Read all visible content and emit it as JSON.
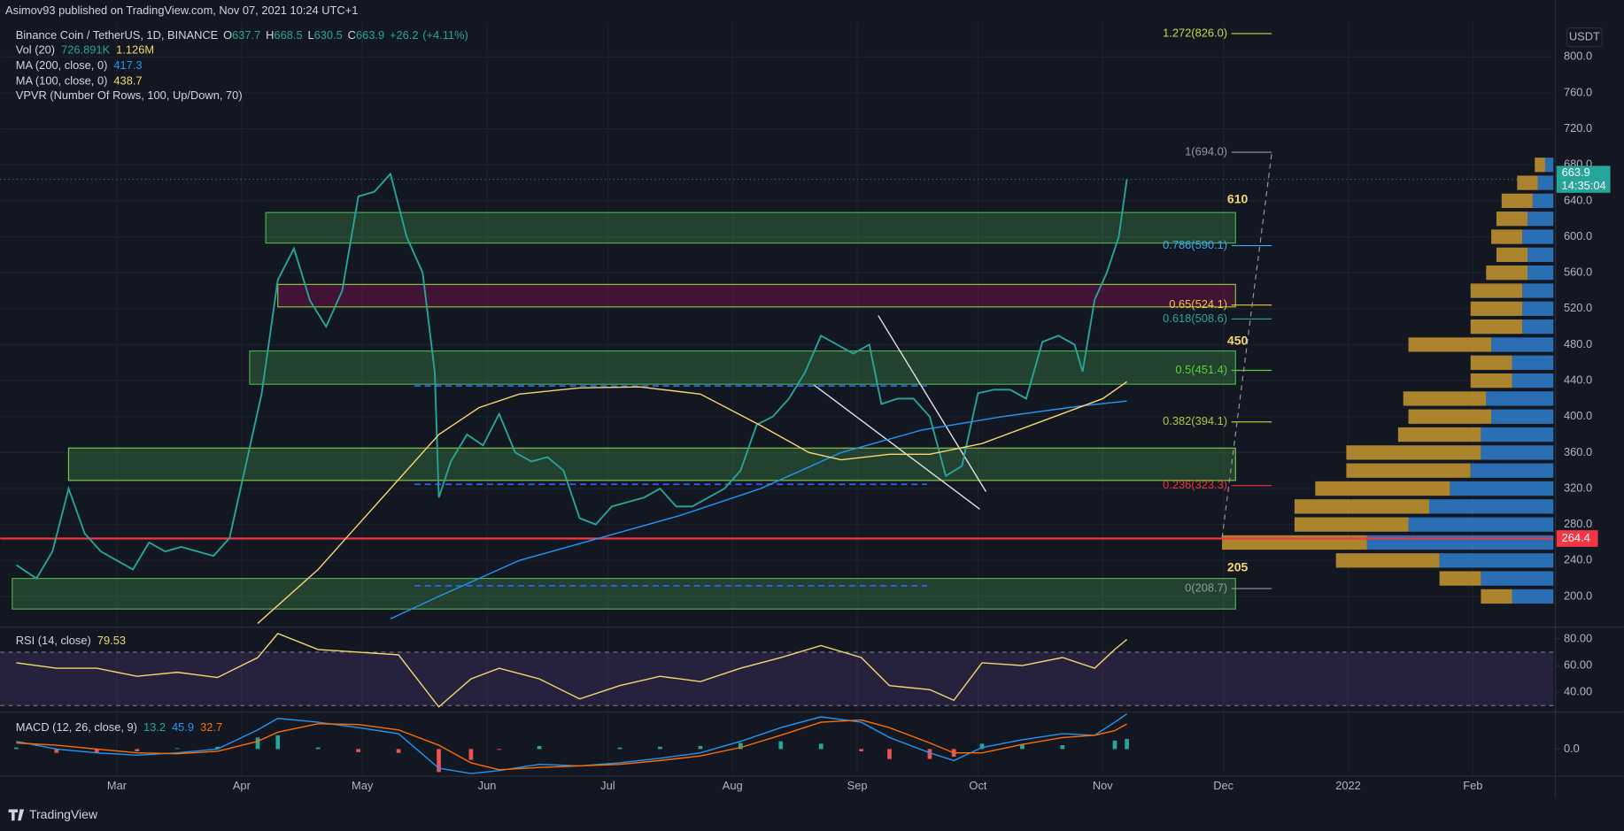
{
  "header": {
    "published": "Asimov93 published on TradingView.com, Nov 07, 2021 10:24 UTC+1"
  },
  "footer": {
    "brand": "TradingView"
  },
  "annotations": [
    "610",
    "450",
    "205"
  ],
  "chart_data": [
    {
      "type": "line",
      "title": "Binance Coin / TetherUS, 1D, BINANCE",
      "ohlc": [
        {
          "label": "O",
          "value": 637.7
        },
        {
          "label": "H",
          "value": 668.5
        },
        {
          "label": "L",
          "value": 630.5
        },
        {
          "label": "C",
          "value": 663.9
        }
      ],
      "change": "+26.2",
      "change_pct": "(+4.11%)",
      "volume": {
        "name": "Vol (20)",
        "values": [
          "726.891K",
          "1.126M"
        ]
      },
      "currency": "USDT",
      "countdown": "14:35:04",
      "xlim": [
        31,
        417
      ],
      "ylim": [
        167,
        838
      ],
      "xticks": [
        {
          "value": 60,
          "label": "Mar"
        },
        {
          "value": 91,
          "label": "Apr"
        },
        {
          "value": 121,
          "label": "May"
        },
        {
          "value": 152,
          "label": "Jun"
        },
        {
          "value": 182,
          "label": "Jul"
        },
        {
          "value": 213,
          "label": "Aug"
        },
        {
          "value": 244,
          "label": "Sep"
        },
        {
          "value": 274,
          "label": "Oct"
        },
        {
          "value": 305,
          "label": "Nov"
        },
        {
          "value": 335,
          "label": "Dec"
        },
        {
          "value": 366,
          "label": "2022"
        },
        {
          "value": 397,
          "label": "Feb"
        }
      ],
      "yticks": [
        {
          "value": 200,
          "label": "200.0"
        },
        {
          "value": 240,
          "label": "240.0"
        },
        {
          "value": 280,
          "label": "280.0"
        },
        {
          "value": 320,
          "label": "320.0"
        },
        {
          "value": 360,
          "label": "360.0"
        },
        {
          "value": 400,
          "label": "400.0"
        },
        {
          "value": 440,
          "label": "440.0"
        },
        {
          "value": 480,
          "label": "480.0"
        },
        {
          "value": 520,
          "label": "520.0"
        },
        {
          "value": 560,
          "label": "560.0"
        },
        {
          "value": 600,
          "label": "600.0"
        },
        {
          "value": 640,
          "label": "640.0"
        },
        {
          "value": 680,
          "label": "680.0"
        },
        {
          "value": 720,
          "label": "720.0"
        },
        {
          "value": 760,
          "label": "760.0"
        },
        {
          "value": 800,
          "label": "800.0"
        }
      ],
      "grid": true,
      "series": [
        {
          "color": "#26a69a",
          "x": [
            35,
            40,
            44,
            48,
            52,
            56,
            60,
            64,
            68,
            72,
            76,
            80,
            84,
            88,
            92,
            96,
            100,
            104,
            108,
            112,
            116,
            120,
            124,
            128,
            132,
            136,
            139,
            140,
            143,
            147,
            151,
            155,
            159,
            163,
            167,
            171,
            175,
            179,
            183,
            187,
            191,
            195,
            199,
            203,
            207,
            211,
            215,
            219,
            223,
            227,
            231,
            235,
            239,
            243,
            247,
            250,
            254,
            258,
            262,
            266,
            270,
            274,
            278,
            282,
            286,
            290,
            294,
            298,
            300,
            303,
            306,
            309,
            311
          ],
          "values": [
            235,
            220,
            250,
            320,
            270,
            250,
            240,
            230,
            260,
            250,
            255,
            250,
            245,
            265,
            345,
            426,
            552,
            587,
            529,
            500,
            540,
            645,
            650,
            670,
            600,
            560,
            449,
            310,
            350,
            380,
            368,
            403,
            360,
            350,
            355,
            340,
            287,
            280,
            300,
            305,
            310,
            320,
            300,
            300,
            310,
            320,
            340,
            391,
            400,
            420,
            449,
            490,
            480,
            470,
            480,
            414,
            420,
            420,
            400,
            334,
            345,
            426,
            430,
            430,
            420,
            483,
            490,
            480,
            450,
            530,
            560,
            600,
            663.9
          ]
        },
        {
          "name": "MA (200, close, 0)",
          "color": "#2196f3",
          "x": [
            128,
            140,
            160,
            180,
            200,
            220,
            240,
            260,
            280,
            300,
            311
          ],
          "values": [
            175,
            200,
            240,
            265,
            290,
            320,
            360,
            385,
            400,
            412,
            417.3
          ]
        },
        {
          "name": "MA (100, close, 0)",
          "color": "#f5d76e",
          "x": [
            95,
            110,
            130,
            140,
            150,
            160,
            175,
            190,
            205,
            220,
            232,
            240,
            252,
            262,
            275,
            290,
            305,
            311
          ],
          "values": [
            170,
            230,
            330,
            380,
            410,
            425,
            432,
            433,
            425,
            390,
            360,
            352,
            358,
            358,
            370,
            395,
            420,
            438.7
          ]
        }
      ],
      "zones": [
        {
          "range": [
            593,
            627
          ],
          "x": [
            97,
            338
          ],
          "fill": "rgba(76,175,80,0.28)",
          "stroke": "#4caf50"
        },
        {
          "range": [
            522,
            547
          ],
          "x": [
            100,
            338
          ],
          "fill": "rgba(136,14,79,0.4)",
          "stroke": "#8bc34a"
        },
        {
          "range": [
            436,
            473
          ],
          "x": [
            93,
            338
          ],
          "fill": "rgba(76,175,80,0.28)",
          "stroke": "#4caf50"
        },
        {
          "range": [
            329,
            365
          ],
          "x": [
            48,
            338
          ],
          "fill": "rgba(76,175,80,0.28)",
          "stroke": "#8bc34a"
        },
        {
          "range": [
            186,
            220
          ],
          "x": [
            34,
            338
          ],
          "fill": "rgba(76,175,80,0.28)",
          "stroke": "#4caf50"
        }
      ],
      "fib": {
        "x": [
          337,
          347
        ],
        "levels": [
          {
            "value": 826.0,
            "label": "1.272(826.0)",
            "color": "#c6d84b"
          },
          {
            "value": 694.0,
            "label": "1(694.0)",
            "color": "#9598a1"
          },
          {
            "value": 590.1,
            "label": "0.786(590.1)",
            "color": "#3fa9f5"
          },
          {
            "value": 524.1,
            "label": "0.65(524.1)",
            "color": "#f5c542"
          },
          {
            "value": 508.6,
            "label": "0.618(508.6)",
            "color": "#26a69a"
          },
          {
            "value": 451.4,
            "label": "0.5(451.4)",
            "color": "#5bcf3a"
          },
          {
            "value": 394.1,
            "label": "0.382(394.1)",
            "color": "#b4c43c"
          },
          {
            "value": 323.3,
            "label": "0.236(323.3)",
            "color": "#e53935"
          },
          {
            "value": 208.7,
            "label": "0(208.7)",
            "color": "#9598a1"
          }
        ]
      },
      "hline": {
        "value": 264.4,
        "color": "#f23645"
      },
      "vpvr": {
        "name": "VPVR (Number Of Rows, 100, Up/Down, 70)",
        "up_color": "#2f7fce",
        "down_color": "#c8982f",
        "rows": [
          200,
          220,
          240,
          260,
          280,
          300,
          320,
          340,
          360,
          380,
          400,
          420,
          440,
          460,
          480,
          500,
          520,
          540,
          560,
          580,
          600,
          620,
          640,
          660,
          680
        ],
        "up": [
          40,
          70,
          110,
          180,
          140,
          120,
          100,
          80,
          70,
          70,
          60,
          65,
          40,
          40,
          60,
          30,
          30,
          30,
          25,
          25,
          30,
          25,
          20,
          15,
          8
        ],
        "down": [
          30,
          40,
          100,
          140,
          110,
          130,
          130,
          120,
          130,
          80,
          80,
          80,
          40,
          40,
          80,
          50,
          50,
          50,
          40,
          30,
          30,
          30,
          30,
          20,
          10
        ]
      }
    },
    {
      "type": "line",
      "title": "RSI (14, close)",
      "ylim": [
        26,
        88
      ],
      "yticks": [
        {
          "value": 80,
          "label": "80.00"
        },
        {
          "value": 60,
          "label": "60.00"
        },
        {
          "value": 40,
          "label": "40.00"
        }
      ],
      "band": [
        30,
        70
      ],
      "series": [
        {
          "color": "#f5d76e",
          "x": [
            35,
            45,
            55,
            65,
            75,
            85,
            95,
            100,
            110,
            120,
            130,
            140,
            148,
            155,
            165,
            175,
            185,
            195,
            205,
            215,
            225,
            235,
            245,
            252,
            262,
            268,
            275,
            285,
            295,
            303,
            308,
            311
          ],
          "values": [
            62,
            58,
            58,
            52,
            55,
            51,
            66,
            84,
            72,
            70,
            68,
            29,
            50,
            58,
            50,
            35,
            45,
            52,
            48,
            58,
            66,
            75,
            66,
            45,
            42,
            34,
            62,
            60,
            66,
            58,
            72,
            79.53
          ]
        }
      ]
    },
    {
      "type": "line",
      "title": "MACD (12, 26, close, 9)",
      "ylim": [
        -34,
        47
      ],
      "yticks": [
        {
          "value": 0,
          "label": "0.0"
        }
      ],
      "series": [
        {
          "style": "histogram",
          "colors": [
            "#26a69a",
            "#ef5350"
          ],
          "x": [
            35,
            45,
            55,
            65,
            75,
            85,
            95,
            100,
            110,
            120,
            130,
            140,
            148,
            155,
            165,
            175,
            185,
            195,
            205,
            215,
            225,
            235,
            245,
            252,
            262,
            268,
            275,
            285,
            295,
            303,
            308,
            311
          ],
          "values": [
            2,
            -5,
            -5,
            -3,
            1,
            3,
            15,
            18,
            2,
            -4,
            -5,
            -30,
            -14,
            -1,
            4,
            0,
            2,
            3,
            4,
            8,
            10,
            7,
            -3,
            -13,
            -13,
            -10,
            7,
            6,
            5,
            0,
            11,
            13.2
          ]
        },
        {
          "color": "#2196f3",
          "x": [
            35,
            45,
            55,
            65,
            75,
            85,
            95,
            100,
            110,
            120,
            130,
            140,
            148,
            155,
            165,
            175,
            185,
            195,
            205,
            215,
            225,
            235,
            245,
            252,
            262,
            268,
            275,
            285,
            295,
            303,
            308,
            311
          ],
          "values": [
            10,
            0,
            -5,
            -8,
            -5,
            0,
            25,
            40,
            35,
            28,
            20,
            -25,
            -32,
            -28,
            -20,
            -22,
            -18,
            -12,
            -5,
            10,
            28,
            42,
            35,
            15,
            -5,
            -15,
            2,
            12,
            20,
            18,
            35,
            45.9
          ]
        },
        {
          "color": "#ff6d00",
          "x": [
            35,
            45,
            55,
            65,
            75,
            85,
            95,
            100,
            110,
            120,
            130,
            140,
            148,
            155,
            165,
            175,
            185,
            195,
            205,
            215,
            225,
            235,
            245,
            252,
            262,
            268,
            275,
            285,
            295,
            303,
            308,
            311
          ],
          "values": [
            8,
            5,
            0,
            -5,
            -6,
            -3,
            10,
            22,
            33,
            32,
            25,
            5,
            -18,
            -27,
            -24,
            -22,
            -20,
            -15,
            -9,
            2,
            18,
            35,
            38,
            28,
            8,
            -5,
            -5,
            6,
            15,
            18,
            24,
            32.7
          ]
        }
      ]
    }
  ]
}
